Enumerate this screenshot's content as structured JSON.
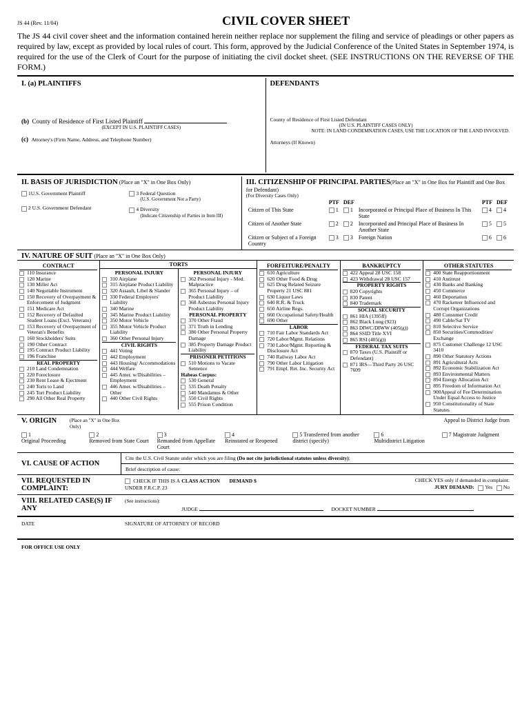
{
  "rev": "JS 44 (Rev. 11/04)",
  "title": "CIVIL COVER SHEET",
  "intro": "The JS 44 civil cover sheet and the information contained herein neither replace nor supplement the filing and service of pleadings or other papers as required by law, except as provided by local rules of court. This form, approved by the Judicial Conference of the United States in September 1974, is required for the use of the Clerk of Court for the purpose of initiating the civil docket sheet. (SEE INSTRUCTIONS ON THE REVERSE OF THE FORM.)",
  "s1": {
    "a": "I.   (a)   PLAINTIFFS",
    "def": "DEFENDANTS",
    "b": "(b)",
    "b_txt": "County of Residence of First Listed Plaintiff",
    "b_note": "(EXCEPT IN U.S. PLAINTIFF CASES)",
    "def_b": "County of Residence of First Listed Defendant",
    "def_b1": "(IN U.S. PLAINTIFF CASES ONLY)",
    "def_b2": "NOTE:   IN LAND CONDEMNATION CASES, USE THE LOCATION OF THE LAND INVOLVED.",
    "c": "(c)",
    "c_txt": "Attorney's (Firm Name, Address, and Telephone Number)",
    "def_c": "Attorneys (If Known)"
  },
  "s2": {
    "hdr": "II. BASIS OF JURISDICTION",
    "note": "(Place an \"X\" in One Box Only)",
    "o1": "U.S. Government Plaintiff",
    "o2": "U.S. Government Defendant",
    "o3": "Federal Question",
    "o3n": "(U.S. Government Not a Party)",
    "o4": "Diversity",
    "o4n": "(Indicate Citizenship of Parties in Item III)"
  },
  "s3": {
    "hdr": "III. CITIZENSHIP OF PRINCIPAL PARTIES",
    "note": "(Place an \"X\" in One Box for Plaintiff and One Box for Defendant)",
    "div": "(For Diversity Cases Only)",
    "ptf": "PTF",
    "def": "DEF",
    "r1a": "Citizen of This State",
    "r1b": "Incorporated or Principal Place of Business In This State",
    "r2a": "Citizen of Another State",
    "r2b": "Incorporated and Principal Place of Business In Another State",
    "r3a": "Citizen or Subject of a Foreign Country",
    "r3b": "Foreign Nation"
  },
  "s4": {
    "hdr": "IV. NATURE OF SUIT",
    "note": "(Place an \"X\" in One Box Only)",
    "h": {
      "c": "CONTRACT",
      "t": "TORTS",
      "f": "FORFEITURE/PENALTY",
      "b": "BANKRUPTCY",
      "o": "OTHER STATUTES"
    },
    "contract": [
      "110 Insurance",
      "120 Marine",
      "130 Miller Act",
      "140 Negotiable Instrument",
      "150 Recovery of Overpayment & Enforcement of Judgment",
      "151 Medicare Act",
      "152 Recovery of Defaulted Student Loans (Excl. Veterans)",
      "153 Recovery of Overpayment of Veteran's Benefits",
      "160 Stockholders' Suits",
      "190 Other Contract",
      "195 Contract Product Liability",
      "196 Franchise"
    ],
    "realprop_h": "REAL PROPERTY",
    "realprop": [
      "210 Land Condemnation",
      "220 Foreclosure",
      "230 Rent Lease & Ejectment",
      "240 Torts to Land",
      "245 Tort Product Liability",
      "290 All Other Real Property"
    ],
    "pi1_h": "PERSONAL INJURY",
    "pi1": [
      "310 Airplane",
      "315 Airplane Product Liability",
      "320 Assault, Libel & Slander",
      "330 Federal Employers' Liability",
      "340 Marine",
      "345 Marine Product Liability",
      "350 Motor Vehicle",
      "355 Motor Vehicle Product Liability",
      "360 Other Personal Injury"
    ],
    "cr_h": "CIVIL RIGHTS",
    "cr": [
      "441 Voting",
      "442 Employment",
      "443 Housing/ Accommodations",
      "444 Welfare",
      "445 Amer. w/Disabilities – Employment",
      "446 Amer. w/Disabilities – Other",
      "440 Other Civil Rights"
    ],
    "pi2_h": "PERSONAL INJURY",
    "pi2": [
      "362 Personal Injury - Med. Malpractice",
      "365 Personal Injury – of Product Liability",
      "368 Asbestos Personal Injury Product Liability"
    ],
    "pp_h": "PERSONAL PROPERTY",
    "pp": [
      "370 Other Fraud",
      "371 Truth in Lending",
      "380 Other Personal Property Damage",
      "385 Property Damage Product Liability"
    ],
    "pris_h": "PRISONER PETITIONS",
    "pris1": "510 Motions to Vacate Sentence",
    "hc": "Habeas Corpus:",
    "pris": [
      "530 General",
      "535 Death Penalty",
      "540 Mandamus & Other",
      "550 Civil Rights",
      "555 Prison Condition"
    ],
    "forf": [
      "610 Agriculture",
      "620 Other Food & Drug",
      "625 Drug Related Seizure Property 21 USC 881",
      "630 Liquor Laws",
      "640 R.R. & Truck",
      "650 Airline Regs.",
      "660 Occupational Safety/Health",
      "690 Other"
    ],
    "lab_h": "LABOR",
    "lab": [
      "710 Fair Labor Standards Act",
      "720 Labor/Mgmt. Relations",
      "730 Labor/Mgmt. Reporting & Disclosure Act",
      "740 Railway Labor Act",
      "790 Other Labor Litigation",
      "791 Empl. Ret. Inc. Security Act"
    ],
    "bank": [
      "422 Appeal 28 USC 158",
      "423 Withdrawal 28 USC 157"
    ],
    "pr_h": "PROPERTY RIGHTS",
    "pr": [
      "820 Copyrights",
      "830 Patent",
      "840 Trademark"
    ],
    "ss_h": "SOCIAL SECURITY",
    "ss": [
      "861 HIA (1395ff)",
      "862 Black Lung (923)",
      "863 DIWC/DIWW (405(g))",
      "864 SSID Title XVI",
      "865 RSI (405(g))"
    ],
    "ft_h": "FEDERAL TAX SUITS",
    "ft": [
      "870 Taxes (U.S. Plaintiff or Defendant)",
      "871 IRS—Third Party 26 USC 7609"
    ],
    "other": [
      "400 State Reapportionment",
      "410 Antitrust",
      "430 Banks and Banking",
      "450 Commerce",
      "460 Deportation",
      "470 Racketeer Influenced and Corrupt Organizations",
      "480 Consumer Credit",
      "490 Cable/Sat TV",
      "810 Selective Service",
      "850 Securities/Commodities/ Exchange",
      "875 Customer Challenge 12 USC 3410",
      "890 Other Statutory Actions",
      "891 Agricultural Acts",
      "892 Economic Stabilization Act",
      "893 Environmental Matters",
      "894 Energy Allocation Act",
      "895 Freedom of Information Act",
      "900Appeal of Fee Determination Under Equal Access to Justice",
      "950 Constitutionality of State Statutes"
    ]
  },
  "s5": {
    "hdr": "V. ORIGIN",
    "note": "(Place an \"X\" in One Box Only)",
    "o1": "Original Proceeding",
    "o2": "Removed from State Court",
    "o3": "Remanded from Appellate Court",
    "o4": "Reinstated or Reopened",
    "o5": "Transferred from another district (specify)",
    "o6": "Multidistrict Litigation",
    "o7h": "Appeal to District Judge from",
    "o7": "Magistrate Judgment"
  },
  "s6": {
    "hdr": "VI. CAUSE OF ACTION",
    "l1": "Cite the U.S. Civil Statute under which you are filing (Do not cite jurisdictional statutes unless diversity):",
    "l2": "Brief description of cause:"
  },
  "s7": {
    "hdr": "VII. REQUESTED IN COMPLAINT:",
    "c1": "CHECK IF THIS IS A",
    "c1b": "CLASS ACTION",
    "c2": "UNDER F.R.C.P. 23",
    "d": "DEMAND $",
    "j": "CHECK YES only if demanded in complaint:",
    "jd": "JURY DEMAND:",
    "y": "Yes",
    "n": "No"
  },
  "s8": {
    "hdr": "VIII. RELATED CASE(S) IF ANY",
    "see": "(See instructions):",
    "j": "JUDGE",
    "d": "DOCKET NUMBER"
  },
  "foot": {
    "date": "DATE",
    "sig": "SIGNATURE OF ATTORNEY OF RECORD",
    "off": "FOR OFFICE USE ONLY"
  }
}
